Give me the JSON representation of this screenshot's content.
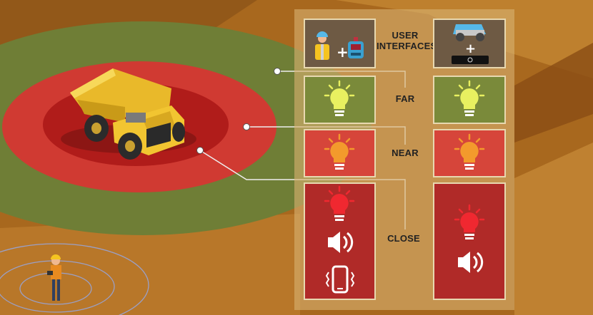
{
  "labels": {
    "user_interfaces": "USER\nINTERFACES",
    "far": "FAR",
    "near": "NEAR",
    "close": "CLOSE"
  },
  "colors": {
    "far_zone": "#7a8a3a",
    "near_zone": "#d6453a",
    "close_zone": "#b02a28",
    "panel": "#d6b070",
    "truck": "#f2c531"
  },
  "icons": {
    "far_light": "light-bulb-green-icon",
    "near_light": "light-bulb-orange-icon",
    "close_light": "light-bulb-red-icon",
    "sound": "speaker-icon",
    "vibration": "phone-vibrate-icon"
  }
}
